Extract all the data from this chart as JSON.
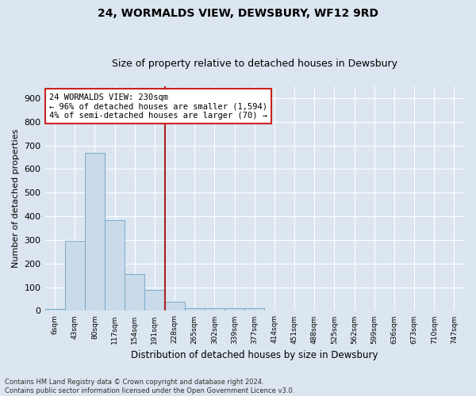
{
  "title": "24, WORMALDS VIEW, DEWSBURY, WF12 9RD",
  "subtitle": "Size of property relative to detached houses in Dewsbury",
  "xlabel": "Distribution of detached houses by size in Dewsbury",
  "ylabel": "Number of detached properties",
  "bar_labels": [
    "6sqm",
    "43sqm",
    "80sqm",
    "117sqm",
    "154sqm",
    "191sqm",
    "228sqm",
    "265sqm",
    "302sqm",
    "339sqm",
    "377sqm",
    "414sqm",
    "451sqm",
    "488sqm",
    "525sqm",
    "562sqm",
    "599sqm",
    "636sqm",
    "673sqm",
    "710sqm",
    "747sqm"
  ],
  "bar_values": [
    8,
    295,
    670,
    382,
    154,
    90,
    37,
    13,
    12,
    11,
    10,
    0,
    0,
    0,
    0,
    0,
    0,
    0,
    0,
    0,
    0
  ],
  "bar_color": "#c9daea",
  "bar_edge_color": "#7aaac8",
  "vline_x_idx": 6,
  "vline_color": "#aa2222",
  "annotation_text": "24 WORMALDS VIEW: 230sqm\n← 96% of detached houses are smaller (1,594)\n4% of semi-detached houses are larger (70) →",
  "annotation_box_color": "#ffffff",
  "annotation_box_edge_color": "#cc2222",
  "ylim": [
    0,
    950
  ],
  "yticks": [
    0,
    100,
    200,
    300,
    400,
    500,
    600,
    700,
    800,
    900
  ],
  "background_color": "#dce6f0",
  "plot_background_color": "#dce6f0",
  "footer_line1": "Contains HM Land Registry data © Crown copyright and database right 2024.",
  "footer_line2": "Contains public sector information licensed under the Open Government Licence v3.0.",
  "title_fontsize": 10,
  "subtitle_fontsize": 9,
  "xlabel_fontsize": 8.5,
  "ylabel_fontsize": 8
}
